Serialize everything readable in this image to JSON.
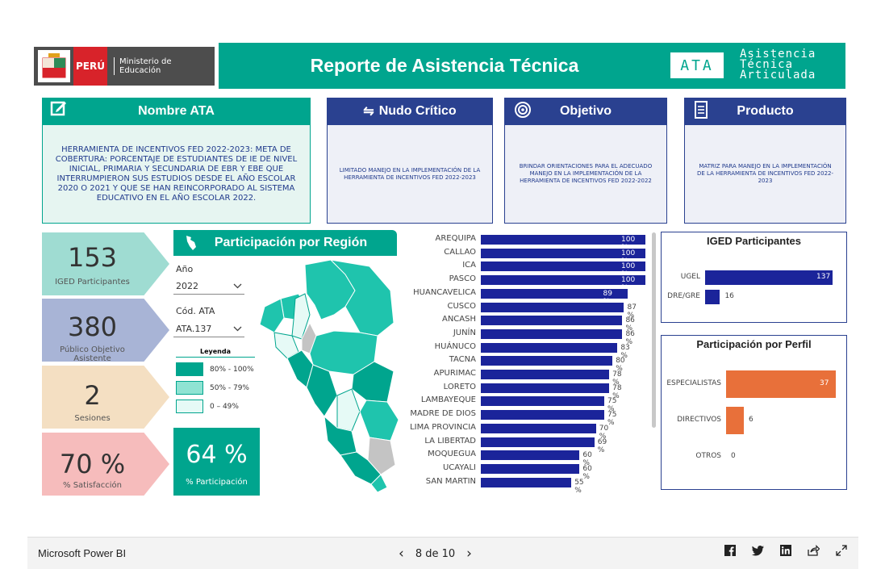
{
  "header": {
    "peru_label": "PERÚ",
    "ministry_label": "Ministerio de Educación",
    "title": "Reporte de Asistencia Técnica",
    "ata_badge": "ATA",
    "ata_words": [
      "Asistencia",
      "Técnica",
      "Articulada"
    ]
  },
  "cards": {
    "nombre": {
      "title": "Nombre ATA",
      "text": "HERRAMIENTA DE INCENTIVOS FED 2022-2023: META DE COBERTURA: PORCENTAJE DE ESTUDIANTES DE IE DE NIVEL INICIAL, PRIMARIA Y SECUNDARIA DE EBR Y EBE QUE INTERRUMPIERON SUS ESTUDIOS DESDE EL AÑO ESCOLAR 2020 O 2021 Y QUE SE HAN REINCORPORADO AL SISTEMA EDUCATIVO EN EL AÑO ESCOLAR 2022."
    },
    "nudo": {
      "title": "Nudo Crítico",
      "text": "LIMITADO MANEJO EN LA IMPLEMENTACIÓN DE LA HERRAMIENTA DE INCENTIVOS FED 2022-2023"
    },
    "objetivo": {
      "title": "Objetivo",
      "text": "BRINDAR ORIENTACIONES PARA EL ADECUADO MANEJO EN LA IMPLEMENTACIÓN DE LA HERRAMIENTA DE INCENTIVOS FED 2022-2022"
    },
    "producto": {
      "title": "Producto",
      "text": "MATRIZ PARA MANEJO EN LA IMPLEMENTACIÓN DE LA HERRAMIENTA DE INCENTIVOS FED 2022-2023"
    }
  },
  "kpis": [
    {
      "value": "153",
      "label": "IGED Participantes",
      "color": "#9fdcd2"
    },
    {
      "value": "380",
      "label": "Público Objetivo Asistente",
      "color": "#a8b4d6"
    },
    {
      "value": "2",
      "label": "Sesiones",
      "color": "#f4dfc2"
    },
    {
      "value": "70 %",
      "label": "% Satisfacción",
      "color": "#f6bcbc"
    }
  ],
  "participation": {
    "value": "64 %",
    "label": "% Participación"
  },
  "region_panel": {
    "title": "Participación por Región",
    "year_label": "Año",
    "year_value": "2022",
    "code_label": "Cód. ATA",
    "code_value": "ATA.137",
    "legend_title": "Leyenda",
    "legend": [
      {
        "label": "80% - 100%",
        "color": "#00a58e"
      },
      {
        "label": "50% - 79%",
        "color": "#8fe3d3"
      },
      {
        "label": "0 – 49%",
        "color": "#e6faf6"
      }
    ]
  },
  "region_chart": {
    "type": "bar",
    "categories": [
      "AREQUIPA",
      "CALLAO",
      "ICA",
      "PASCO",
      "HUANCAVELICA",
      "CUSCO",
      "ANCASH",
      "JUNÍN",
      "HUÁNUCO",
      "TACNA",
      "APURIMAC",
      "LORETO",
      "LAMBAYEQUE",
      "MADRE DE DIOS",
      "LIMA PROVINCIA",
      "LA LIBERTAD",
      "MOQUEGUA",
      "UCAYALI",
      "SAN MARTIN"
    ],
    "values": [
      100,
      100,
      100,
      100,
      89,
      87,
      86,
      86,
      83,
      80,
      78,
      78,
      75,
      75,
      70,
      69,
      60,
      60,
      55
    ],
    "labels": [
      "100 %",
      "100 %",
      "100 %",
      "100 %",
      "89 %",
      "87 %",
      "86 %",
      "86 %",
      "83 %",
      "80 %",
      "78 %",
      "78 %",
      "75 %",
      "75 %",
      "70 %",
      "69 %",
      "60 %",
      "60 %",
      "55 %"
    ]
  },
  "iged_chart": {
    "title": "IGED Participantes",
    "type": "bar",
    "categories": [
      "UGEL",
      "DRE/GRE"
    ],
    "values": [
      137,
      16
    ]
  },
  "perfil_chart": {
    "title": "Participación por Perfil",
    "type": "bar",
    "categories": [
      "ESPECIALISTAS",
      "DIRECTIVOS",
      "OTROS"
    ],
    "values": [
      37,
      6,
      0
    ]
  },
  "footer": {
    "brand": "Microsoft Power BI",
    "page": "8 de 10"
  },
  "colors": {
    "teal": "#00a58e",
    "navy": "#2a4190",
    "bar_navy": "#1b249a",
    "orange": "#e8703a"
  }
}
